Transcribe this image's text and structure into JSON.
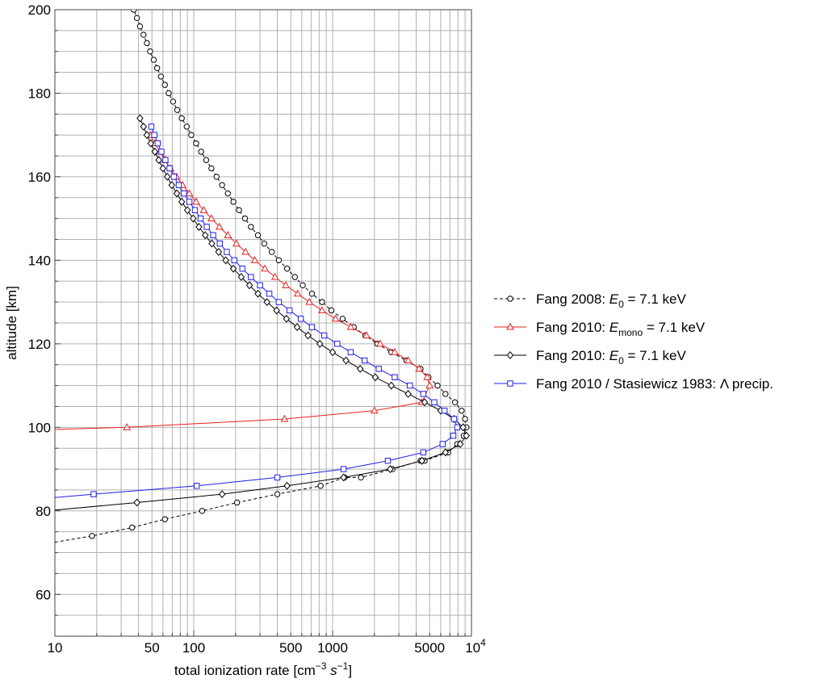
{
  "chart_data": {
    "type": "line",
    "xlabel": "total ionization rate [cm-3 s-1]",
    "xlabel_parts": {
      "base": "total ionization rate [cm",
      "exp1": "−3",
      "mid": " s",
      "exp2": "−1",
      "end": "]"
    },
    "ylabel": "altitude [km]",
    "xscale": "log",
    "xlim": [
      10,
      10000
    ],
    "ylim": [
      50,
      200
    ],
    "grid": true,
    "legend_position": "right",
    "x_tick_labels": [
      {
        "value": 10,
        "label": "10"
      },
      {
        "value": 50,
        "label": "50"
      },
      {
        "value": 100,
        "label": "100"
      },
      {
        "value": 500,
        "label": "500"
      },
      {
        "value": 1000,
        "label": "1000"
      },
      {
        "value": 5000,
        "label": "5000"
      },
      {
        "value": 10000,
        "label": "10",
        "sup": "4"
      }
    ],
    "y_ticks": [
      60,
      80,
      100,
      120,
      140,
      160,
      180,
      200
    ],
    "series": [
      {
        "name": "Fang 2008: E0 = 7.1 keV",
        "legend": {
          "prefix": "Fang 2008: ",
          "var": "E",
          "sub": "0",
          "suffix": " = 7.1 keV"
        },
        "color": "#000000",
        "dash": "4,3",
        "marker": "circle",
        "x": [
          10,
          18.5,
          36,
          62,
          115,
          205,
          400,
          820,
          1220,
          1600,
          2700,
          4300,
          4600,
          6800,
          7900,
          8800,
          9200,
          9000,
          8500,
          7600,
          6500,
          5700,
          4900,
          4300,
          3400,
          2650,
          2100,
          1720,
          1420,
          1180,
          980,
          840,
          710,
          610,
          535,
          470,
          410,
          365,
          322,
          290,
          258,
          234,
          212,
          193,
          176,
          160,
          146,
          134,
          123,
          113,
          104,
          96,
          89,
          82,
          76,
          71,
          66,
          62,
          58,
          54.5,
          51.5,
          48.5,
          46,
          43.5,
          41,
          39,
          37
        ],
        "y": [
          72.5,
          74,
          76,
          78,
          80,
          82,
          84,
          86,
          88,
          88,
          90,
          92,
          92,
          94,
          96,
          98,
          100,
          102,
          104,
          106,
          108,
          110,
          112,
          114,
          116,
          118,
          120,
          122,
          124,
          126,
          128,
          130,
          132,
          134,
          136,
          138,
          140,
          142,
          144,
          146,
          148,
          150,
          152,
          154,
          156,
          158,
          160,
          162,
          164,
          166,
          168,
          170,
          172,
          174,
          176,
          178,
          180,
          182,
          184,
          186,
          188,
          190,
          192,
          194,
          196,
          198,
          200
        ]
      },
      {
        "name": "Fang 2010: Emono = 7.1 keV",
        "legend": {
          "prefix": "Fang 2010: ",
          "var": "E",
          "sub": "mono",
          "suffix": " = 7.1 keV"
        },
        "color": "#e8201e",
        "dash": "",
        "marker": "triangle",
        "x": [
          10,
          33,
          450,
          2000,
          4400,
          5000,
          4800,
          4200,
          3500,
          2800,
          2200,
          1750,
          1350,
          1050,
          840,
          680,
          560,
          460,
          385,
          325,
          275,
          236,
          203,
          176,
          153,
          134,
          118,
          104,
          93,
          83,
          75,
          68,
          62,
          57,
          52.5,
          48.5
        ],
        "y": [
          99.5,
          100,
          102,
          104,
          106,
          110,
          112,
          114,
          116,
          118,
          120,
          122,
          124,
          126,
          128,
          130,
          132,
          134,
          136,
          138,
          140,
          142,
          144,
          146,
          148,
          150,
          152,
          154,
          156,
          158,
          160,
          162,
          164,
          166,
          168,
          170
        ]
      },
      {
        "name": "Fang 2010: E0 = 7.1 keV",
        "legend": {
          "prefix": "Fang 2010: ",
          "var": "E",
          "sub": "0",
          "suffix": " = 7.1 keV"
        },
        "color": "#000000",
        "dash": "",
        "marker": "diamond",
        "x": [
          10,
          39,
          160,
          470,
          1200,
          2600,
          4400,
          6500,
          8300,
          9200,
          8700,
          7500,
          6000,
          4600,
          3500,
          2650,
          2030,
          1580,
          1250,
          1000,
          810,
          665,
          555,
          465,
          395,
          337,
          290,
          252,
          220,
          193,
          170,
          151,
          135,
          121,
          109,
          99,
          90,
          82,
          75.5,
          69.5,
          64.5,
          60,
          56,
          52.5,
          49,
          46,
          43.5,
          41
        ],
        "y": [
          80.2,
          82,
          84,
          86,
          88,
          90,
          92,
          94,
          96,
          98,
          100,
          102,
          104,
          106,
          108,
          110,
          112,
          114,
          116,
          118,
          120,
          122,
          124,
          126,
          128,
          130,
          132,
          134,
          136,
          138,
          140,
          142,
          144,
          146,
          148,
          150,
          152,
          154,
          156,
          158,
          160,
          162,
          164,
          166,
          168,
          170,
          172,
          174
        ]
      },
      {
        "name": "Fang 2010 / Stasiewicz 1983: Λ precip.",
        "legend": {
          "prefix": "Fang 2010 / Stasiewicz 1983: Λ precip.",
          "var": "",
          "sub": "",
          "suffix": ""
        },
        "color": "#1f1fe8",
        "dash": "",
        "marker": "square",
        "x": [
          10,
          19,
          105,
          400,
          1200,
          2500,
          4500,
          6200,
          7400,
          7900,
          7500,
          6400,
          5400,
          4500,
          3600,
          2800,
          2150,
          1700,
          1350,
          1080,
          870,
          710,
          590,
          490,
          410,
          350,
          300,
          258,
          224,
          196,
          173,
          154,
          138,
          124,
          112,
          102,
          93,
          85,
          78,
          72,
          67,
          62.5,
          58.5,
          55,
          52,
          49.5
        ],
        "y": [
          83.2,
          84,
          86,
          88,
          90,
          92,
          94,
          96,
          98,
          100,
          102,
          104,
          106,
          108,
          110,
          112,
          114,
          116,
          118,
          120,
          122,
          124,
          126,
          128,
          130,
          132,
          134,
          136,
          138,
          140,
          142,
          144,
          146,
          148,
          150,
          152,
          154,
          156,
          158,
          160,
          162,
          164,
          166,
          168,
          170,
          172
        ]
      }
    ]
  }
}
